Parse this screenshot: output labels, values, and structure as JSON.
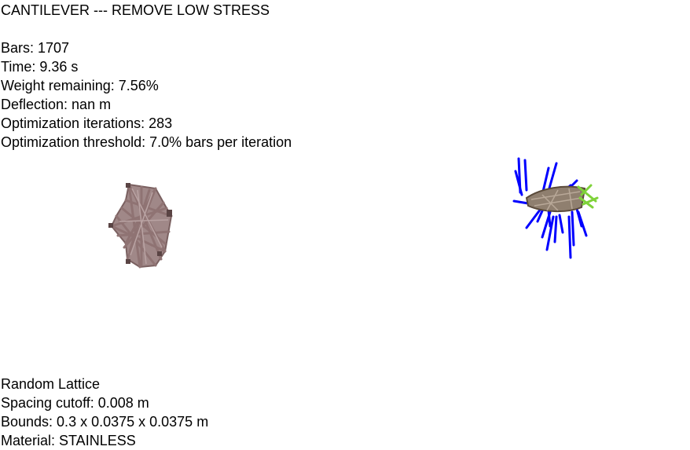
{
  "header": {
    "title": "CANTILEVER --- REMOVE LOW STRESS"
  },
  "stats": {
    "bars": "Bars: 1707",
    "time": "Time: 9.36 s",
    "weight_remaining": "Weight remaining: 7.56%",
    "deflection": "Deflection: nan m",
    "iterations": "Optimization iterations: 283",
    "threshold": "Optimization threshold: 7.0% bars per iteration"
  },
  "footer": {
    "lattice_type": "Random Lattice",
    "spacing": "Spacing cutoff: 0.008 m",
    "bounds": "Bounds: 0.3 x 0.0375 x 0.0375 m",
    "material": "Material: STAINLESS"
  },
  "colors": {
    "structure": "#8f7373",
    "structure_dark": "#5a4444",
    "load_arrow": "#0000ff",
    "support": "#7fd23a"
  },
  "icons": {
    "left_view": "lattice-front-view",
    "right_view": "lattice-deformed-view"
  }
}
